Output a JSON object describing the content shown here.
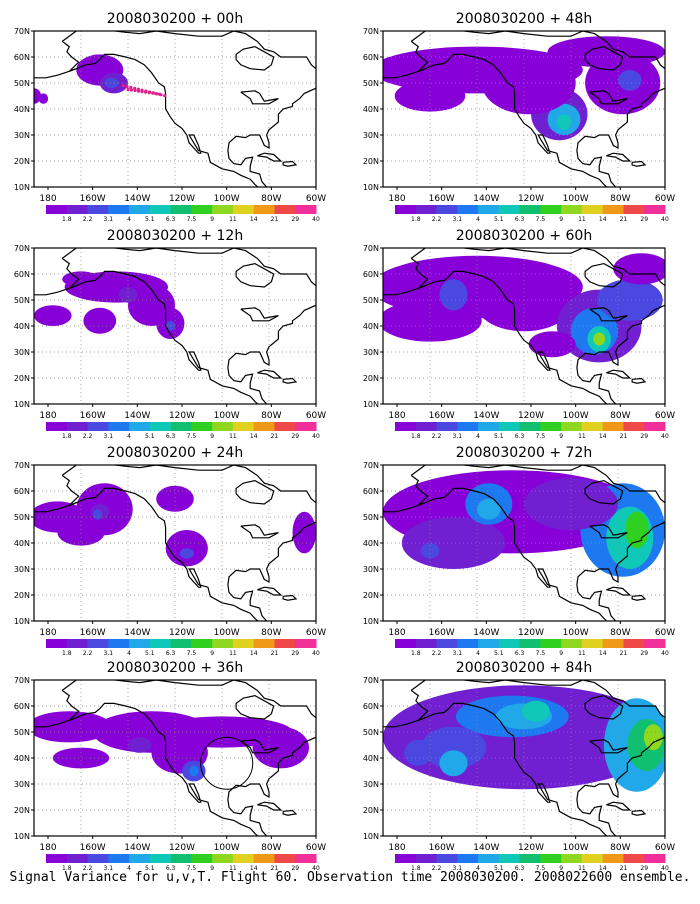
{
  "colors": {
    "scale": [
      "#8800d8",
      "#7020d0",
      "#4a48e0",
      "#1e78f0",
      "#20a8e8",
      "#10c8b8",
      "#10c070",
      "#30d020",
      "#90d820",
      "#e0d020",
      "#f09818",
      "#f04848",
      "#f03098"
    ],
    "bg": "#ffffff"
  },
  "chart_data": [
    {
      "type": "heatmap",
      "title": "2008030200 + 00h",
      "xlim": [
        "180",
        "60W"
      ],
      "ylim": [
        "10N",
        "70N"
      ],
      "x_ticks": [
        "180",
        "160W",
        "140W",
        "120W",
        "100W",
        "80W",
        "60W"
      ],
      "y_ticks": [
        "10N",
        "20N",
        "30N",
        "40N",
        "50N",
        "60N",
        "70N"
      ],
      "grid": true,
      "colorbar_labels": [
        "1.8",
        "2.2",
        "3.1",
        "4",
        "5.1",
        "6.3",
        "7.5",
        "9",
        "11",
        "14",
        "21",
        "29",
        "40"
      ],
      "features": [
        {
          "lon": -152,
          "lat": 54,
          "level": 1
        },
        {
          "lon": -146,
          "lat": 50,
          "level": 3
        },
        {
          "lon": -180,
          "lat": 45,
          "level": 0
        }
      ],
      "observations": "flight track dots (magenta) near 140W–125W, 45N–50N"
    },
    {
      "type": "heatmap",
      "title": "2008030200 + 12h",
      "xlim": [
        "180",
        "60W"
      ],
      "ylim": [
        "10N",
        "70N"
      ],
      "x_ticks": [
        "180",
        "160W",
        "140W",
        "120W",
        "100W",
        "80W",
        "60W"
      ],
      "y_ticks": [
        "10N",
        "20N",
        "30N",
        "40N",
        "50N",
        "60N",
        "70N"
      ],
      "grid": true,
      "colorbar_labels": [
        "1.8",
        "2.2",
        "3.1",
        "4",
        "5.1",
        "6.3",
        "7.5",
        "9",
        "11",
        "14",
        "21",
        "29",
        "40"
      ],
      "features": [
        {
          "lon": -140,
          "lat": 52,
          "level": 2
        },
        {
          "lon": -122,
          "lat": 40,
          "level": 2
        }
      ]
    },
    {
      "type": "heatmap",
      "title": "2008030200 + 24h",
      "xlim": [
        "180",
        "60W"
      ],
      "ylim": [
        "10N",
        "70N"
      ],
      "x_ticks": [
        "180",
        "160W",
        "140W",
        "120W",
        "100W",
        "80W",
        "60W"
      ],
      "y_ticks": [
        "10N",
        "20N",
        "30N",
        "40N",
        "50N",
        "60N",
        "70N"
      ],
      "grid": true,
      "colorbar_labels": [
        "1.8",
        "2.2",
        "3.1",
        "4",
        "5.1",
        "6.3",
        "7.5",
        "9",
        "11",
        "14",
        "21",
        "29",
        "40"
      ],
      "features": [
        {
          "lon": -152,
          "lat": 52,
          "level": 3
        },
        {
          "lon": -115,
          "lat": 36,
          "level": 2
        }
      ]
    },
    {
      "type": "heatmap",
      "title": "2008030200 + 36h",
      "xlim": [
        "180",
        "60W"
      ],
      "ylim": [
        "10N",
        "70N"
      ],
      "x_ticks": [
        "180",
        "160W",
        "140W",
        "120W",
        "100W",
        "80W",
        "60W"
      ],
      "y_ticks": [
        "10N",
        "20N",
        "30N",
        "40N",
        "50N",
        "60N",
        "70N"
      ],
      "grid": true,
      "colorbar_labels": [
        "1.8",
        "2.2",
        "3.1",
        "4",
        "5.1",
        "6.3",
        "7.5",
        "9",
        "11",
        "14",
        "21",
        "29",
        "40"
      ],
      "features": [
        {
          "lon": -135,
          "lat": 45,
          "level": 2
        },
        {
          "lon": -112,
          "lat": 35,
          "level": 3
        }
      ],
      "observations": "target circle outline near 100W, 38N"
    },
    {
      "type": "heatmap",
      "title": "2008030200 + 48h",
      "xlim": [
        "180",
        "60W"
      ],
      "ylim": [
        "10N",
        "70N"
      ],
      "x_ticks": [
        "180",
        "160W",
        "140W",
        "120W",
        "100W",
        "80W",
        "60W"
      ],
      "y_ticks": [
        "10N",
        "20N",
        "30N",
        "40N",
        "50N",
        "60N",
        "70N"
      ],
      "grid": true,
      "colorbar_labels": [
        "1.8",
        "2.2",
        "3.1",
        "4",
        "5.1",
        "6.3",
        "7.5",
        "9",
        "11",
        "14",
        "21",
        "29",
        "40"
      ],
      "features": [
        {
          "lon": -103,
          "lat": 36,
          "level": 5
        },
        {
          "lon": -75,
          "lat": 50,
          "level": 2
        }
      ]
    },
    {
      "type": "heatmap",
      "title": "2008030200 + 60h",
      "xlim": [
        "180",
        "60W"
      ],
      "ylim": [
        "10N",
        "70N"
      ],
      "x_ticks": [
        "180",
        "160W",
        "140W",
        "120W",
        "100W",
        "80W",
        "60W"
      ],
      "y_ticks": [
        "10N",
        "20N",
        "30N",
        "40N",
        "50N",
        "60N",
        "70N"
      ],
      "grid": true,
      "colorbar_labels": [
        "1.8",
        "2.2",
        "3.1",
        "4",
        "5.1",
        "6.3",
        "7.5",
        "9",
        "11",
        "14",
        "21",
        "29",
        "40"
      ],
      "features": [
        {
          "lon": -88,
          "lat": 35,
          "level": 8
        },
        {
          "lon": -150,
          "lat": 50,
          "level": 3
        }
      ]
    },
    {
      "type": "heatmap",
      "title": "2008030200 + 72h",
      "xlim": [
        "180",
        "60W"
      ],
      "ylim": [
        "10N",
        "70N"
      ],
      "x_ticks": [
        "180",
        "160W",
        "140W",
        "120W",
        "100W",
        "80W",
        "60W"
      ],
      "y_ticks": [
        "10N",
        "20N",
        "30N",
        "40N",
        "50N",
        "60N",
        "70N"
      ],
      "grid": true,
      "colorbar_labels": [
        "1.8",
        "2.2",
        "3.1",
        "4",
        "5.1",
        "6.3",
        "7.5",
        "9",
        "11",
        "14",
        "21",
        "29",
        "40"
      ],
      "features": [
        {
          "lon": -75,
          "lat": 42,
          "level": 7
        },
        {
          "lon": -135,
          "lat": 55,
          "level": 4
        }
      ]
    },
    {
      "type": "heatmap",
      "title": "2008030200 + 84h",
      "xlim": [
        "180",
        "60W"
      ],
      "ylim": [
        "10N",
        "70N"
      ],
      "x_ticks": [
        "180",
        "160W",
        "140W",
        "120W",
        "100W",
        "80W",
        "60W"
      ],
      "y_ticks": [
        "10N",
        "20N",
        "30N",
        "40N",
        "50N",
        "60N",
        "70N"
      ],
      "grid": true,
      "colorbar_labels": [
        "1.8",
        "2.2",
        "3.1",
        "4",
        "5.1",
        "6.3",
        "7.5",
        "9",
        "11",
        "14",
        "21",
        "29",
        "40"
      ],
      "features": [
        {
          "lon": -125,
          "lat": 55,
          "level": 5
        },
        {
          "lon": -68,
          "lat": 45,
          "level": 8
        }
      ]
    }
  ],
  "footer": "Signal Variance for u,v,T. Flight 60. Observation time 2008030200. 2008022600 ensemble."
}
